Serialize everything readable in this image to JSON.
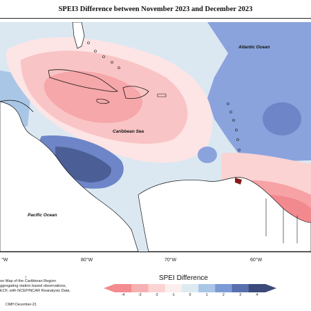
{
  "title": "SPEI3 Difference between November 2023 and December 2023",
  "map": {
    "labels": {
      "atlantic": "Atlantic Ocean",
      "caribbean": "Caribbean Sea",
      "pacific": "Pacific Ocean"
    },
    "longitudes": [
      "°W",
      "80°W",
      "70°W",
      "60°W"
    ]
  },
  "notes": {
    "line1": "on Map of the Caribbean Region",
    "line2": "ggregating station based observations,",
    "line3": "ECF, with NCEP/NCAR Reanalysis Data.",
    "credit": "CIMH December-23",
    "mark": "3"
  },
  "legend": {
    "title": "SPEI Difference",
    "ticks": [
      "-4",
      "-3",
      "-2",
      "-1",
      "0",
      "1",
      "2",
      "3",
      "4"
    ],
    "colors": [
      "#f38b8f",
      "#f7b1b2",
      "#fbd3d3",
      "#fdeeee",
      "#ddeaf2",
      "#aac6e6",
      "#7b9ad6",
      "#5870ad",
      "#3b4a7a"
    ]
  }
}
